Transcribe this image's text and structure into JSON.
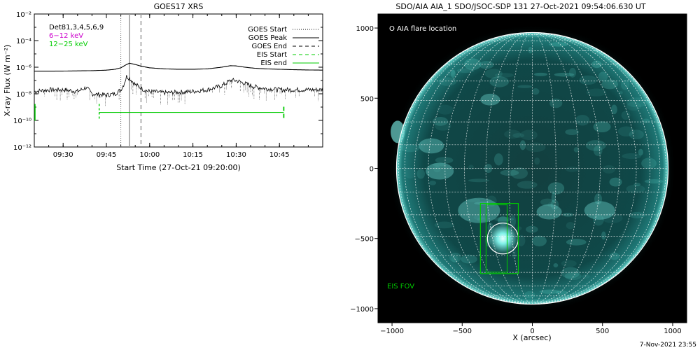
{
  "colors": {
    "background": "#ffffff",
    "axis": "#000000",
    "low_channel": "#000000",
    "mid_channel": "#cc00cc",
    "high_channel": "#00cc00",
    "eis": "#00cc00",
    "sun_disk": "#0b3a3a",
    "grid": "#ffffff",
    "sun_background": "#000000"
  },
  "footer": {
    "timestamp": "7-Nov-2021 23:55"
  },
  "chart_data": [
    {
      "type": "line",
      "title": "GOES17 XRS",
      "xlabel": "Start Time (27-Oct-21 09:20:00)",
      "ylabel": "X-ray Flux (W m⁻²)",
      "y_scale": "log",
      "ylim": [
        1e-12,
        0.01
      ],
      "xlim_minutes_after_start": [
        0,
        100
      ],
      "y_ticks": [
        {
          "value": 0.01,
          "label": "10⁻²"
        },
        {
          "value": 0.0001,
          "label": "10⁻⁴"
        },
        {
          "value": 1e-06,
          "label": "10⁻⁶"
        },
        {
          "value": 1e-08,
          "label": "10⁻⁸"
        },
        {
          "value": 1e-10,
          "label": "10⁻¹⁰"
        },
        {
          "value": 1e-12,
          "label": "10⁻¹²"
        }
      ],
      "x_ticks": [
        {
          "minutes": 10,
          "label": "09:30"
        },
        {
          "minutes": 25,
          "label": "09:45"
        },
        {
          "minutes": 40,
          "label": "10:00"
        },
        {
          "minutes": 55,
          "label": "10:15"
        },
        {
          "minutes": 70,
          "label": "10:30"
        },
        {
          "minutes": 85,
          "label": "10:45"
        }
      ],
      "channel_labels": [
        {
          "text": "Det81,3,4,5,6,9",
          "color": "#000000"
        },
        {
          "text": "6−12 keV",
          "color": "#cc00cc"
        },
        {
          "text": "12−25 keV",
          "color": "#00cc00"
        }
      ],
      "series": [
        {
          "name": "",
          "x": [
            0,
            5,
            10,
            15,
            20,
            25,
            28,
            30,
            32,
            33,
            35,
            37,
            40,
            45,
            50,
            55,
            60,
            65,
            68,
            70,
            73,
            76,
            80,
            85,
            90,
            95,
            100
          ],
          "values": [
            5e-07,
            5e-07,
            5.1e-07,
            5.3e-07,
            5.5e-07,
            6e-07,
            7e-07,
            9e-07,
            1.6e-06,
            2e-06,
            1.6e-06,
            1.2e-06,
            9e-07,
            7.5e-07,
            7e-07,
            7e-07,
            7.5e-07,
            1e-06,
            1.3e-06,
            1.25e-06,
            1e-06,
            8.5e-07,
            7.5e-07,
            7e-07,
            6.5e-07,
            6.2e-07,
            6e-07
          ]
        },
        {
          "name": "",
          "x": [
            0,
            5,
            10,
            15,
            18,
            20,
            25,
            28,
            30,
            31,
            32,
            33,
            35,
            38,
            40,
            45,
            50,
            55,
            60,
            65,
            68,
            70,
            73,
            76,
            80,
            85,
            90,
            95,
            100
          ],
          "values": [
            1.5e-08,
            2e-08,
            2e-08,
            1.5e-08,
            3e-08,
            1e-08,
            8e-09,
            1e-08,
            2e-08,
            5e-08,
            2e-07,
            1.5e-07,
            5e-08,
            2e-08,
            1.5e-08,
            1.2e-08,
            1.3e-08,
            1.5e-08,
            2e-08,
            4e-08,
            1e-07,
            1e-07,
            6e-08,
            3.5e-08,
            2.5e-08,
            2e-08,
            2e-08,
            2e-08,
            2e-08
          ]
        }
      ],
      "legend": {
        "placement": "top-right",
        "entries": [
          {
            "label": "GOES Start",
            "style": "dotted",
            "color": "#000000"
          },
          {
            "label": "GOES Peak",
            "style": "solid",
            "color": "#000000"
          },
          {
            "label": "GOES End",
            "style": "dashed",
            "color": "#000000"
          },
          {
            "label": "EIS Start",
            "style": "dashed",
            "color": "#00cc00"
          },
          {
            "label": "EIS end",
            "style": "solid",
            "color": "#00cc00"
          }
        ]
      },
      "markers": {
        "goes_start": 30,
        "goes_peak": 33,
        "goes_end": 37
      },
      "eis_segments": [
        {
          "start_minutes": 0,
          "end_minutes": 0,
          "level": 4e-10
        },
        {
          "start_minutes": 22.5,
          "end_minutes": 86.5,
          "level": 4e-10
        }
      ]
    },
    {
      "type": "image",
      "title": "SDO/AIA AIA_1 SDO/JSOC-SDP 131 27-Oct-2021 09:54:06.630 UT",
      "xlabel": "X (arcsec)",
      "ylabel": "",
      "xlim": [
        -1100,
        1100
      ],
      "ylim": [
        -1100,
        1100
      ],
      "x_ticks": [
        -1000,
        -500,
        0,
        500,
        1000
      ],
      "y_ticks": [
        1000,
        500,
        0,
        -500,
        -1000
      ],
      "annotations": [
        {
          "text": "O AIA flare location",
          "color": "#ffffff"
        },
        {
          "text": "EIS FOV",
          "color": "#00cc00"
        }
      ],
      "solar_radius_arcsec": 968,
      "flare_location": {
        "x": -210,
        "y": -500,
        "radius_arcsec": 110
      },
      "eis_fov": {
        "x_min": -370,
        "x_max": -100,
        "y_min": -750,
        "y_max": -250
      },
      "eis_inner_fov": {
        "x_min": -330,
        "x_max": -180,
        "y_min": -740,
        "y_max": -260
      }
    }
  ]
}
